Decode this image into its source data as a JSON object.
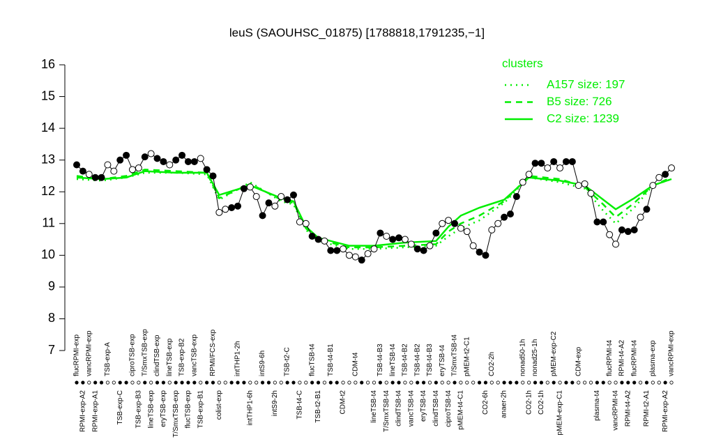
{
  "chart_data": {
    "type": "line",
    "title": "leuS (SAOUHSC_01875) [1788818,1791235,−1]",
    "legend_title": "clusters",
    "legend_position": "top-right",
    "ylim": [
      7,
      16
    ],
    "yticks": [
      7,
      8,
      9,
      10,
      11,
      12,
      13,
      14,
      15,
      16
    ],
    "categories": [
      "flucRPMI-exp",
      "RPMI-exp-A2",
      "vancRPMI-exp",
      "RPMI-exp-A1",
      null,
      "TSB-exp-A",
      null,
      "TSB-exp-C",
      null,
      "ciproTSB-exp",
      "TSB-exp-B3",
      "T/SmxTSB-exp",
      "lineTSB-exp",
      "clindTSB-exp",
      "eryTSB-exp",
      "lineTSB-exp",
      "T/SmxTSB-exp",
      "TSB-exp-B2",
      "flucTSB-exp",
      "vancTSB-exp",
      "TSB-exp-B1",
      null,
      "RPMI/FCS-exp",
      "colist-exp",
      null,
      null,
      "intTHP1-2h",
      null,
      "intTHP1-6h",
      null,
      "intS9-6h",
      null,
      "intS9-2h",
      null,
      "TSB-t2-C",
      null,
      "TSB-t4-C",
      null,
      "flucTSB-t4",
      "TSB-t2-B1",
      null,
      "TSB-t4-B1",
      null,
      "CDM-t2",
      null,
      "CDM-t4",
      null,
      null,
      "lineTSB-t4",
      "TSB-t4-B3",
      "T/SmxTSB-t4",
      "lineTSB-t4",
      "clindTSB-t4",
      "TSB-t4-B2",
      "vancTSB-t4",
      "TSB-t4-B2",
      "eryTSB-t4",
      "TSB-t4-B3",
      "clindTSB-t4",
      "eryTSB-t4",
      "ciproTSB-t4",
      "T/SmxTSB-t4",
      "pMEM-t4-C1",
      "pMEM-t2-C1",
      null,
      null,
      "CO2-6h",
      "CO2-2h",
      null,
      "anaer-2h",
      null,
      null,
      "nonad50-1h",
      "CO2-1h",
      "nonad25-1h",
      "CO2-1h",
      null,
      "pMEM-exp-C2",
      "pMEM-exp-C1",
      null,
      null,
      "CDM-exp",
      null,
      null,
      "plasma-t4",
      null,
      "flucRPMI-t4",
      "vancRPMI-t4",
      "RPMI-t4-A2",
      "RPMI-t4-A2",
      "flucRPMI-t4",
      null,
      "RPMI-t2-A1",
      "plasma-exp",
      null,
      "RPMI-exp-A2",
      "vancRPMI-exp"
    ],
    "marker_filled": [
      true,
      true,
      false,
      true,
      true,
      false,
      false,
      true,
      true,
      false,
      false,
      true,
      false,
      true,
      true,
      false,
      true,
      true,
      true,
      true,
      false,
      true,
      true,
      false,
      false,
      true,
      true,
      true,
      false,
      false,
      true,
      true,
      false,
      false,
      true,
      true,
      false,
      false,
      true,
      true,
      false,
      true,
      true,
      false,
      false,
      false,
      true,
      false,
      false,
      true,
      false,
      true,
      true,
      false,
      false,
      true,
      true,
      false,
      true,
      false,
      false,
      true,
      false,
      false,
      false,
      true,
      true,
      false,
      false,
      true,
      true,
      true,
      false,
      false,
      true,
      true,
      false,
      true,
      false,
      true,
      true,
      false,
      false,
      false,
      true,
      true,
      false,
      false,
      true,
      true,
      true,
      false,
      true,
      false,
      false,
      true,
      false
    ],
    "values": [
      12.85,
      12.65,
      12.55,
      12.45,
      12.45,
      12.85,
      12.65,
      13.0,
      13.15,
      12.7,
      12.75,
      13.1,
      13.2,
      13.05,
      12.95,
      12.85,
      13.0,
      13.15,
      12.95,
      12.95,
      13.05,
      12.7,
      12.5,
      11.35,
      11.45,
      11.5,
      11.55,
      12.1,
      12.15,
      11.85,
      11.25,
      11.65,
      11.55,
      11.85,
      11.75,
      11.9,
      11.05,
      11.0,
      10.6,
      10.5,
      10.45,
      10.15,
      10.15,
      10.2,
      10.0,
      9.95,
      9.85,
      10.05,
      10.2,
      10.7,
      10.6,
      10.5,
      10.55,
      10.5,
      10.35,
      10.2,
      10.15,
      10.3,
      10.7,
      11.0,
      11.1,
      11.0,
      10.85,
      10.75,
      10.3,
      10.1,
      10.0,
      10.8,
      11.0,
      11.2,
      11.3,
      11.85,
      12.3,
      12.55,
      12.9,
      12.9,
      12.75,
      12.95,
      12.75,
      12.95,
      12.95,
      12.2,
      12.25,
      11.95,
      11.05,
      11.05,
      10.65,
      10.35,
      10.8,
      10.75,
      10.8,
      11.2,
      11.45,
      12.2,
      12.45,
      12.55,
      12.75
    ],
    "series": [
      {
        "name": "A157 size: 197",
        "color": "#00ee00",
        "dash": "dotted",
        "x": [
          0,
          4,
          8,
          11,
          16,
          21,
          23,
          28,
          33,
          35,
          37,
          39,
          44,
          48,
          53,
          58,
          60,
          62,
          65,
          69,
          73,
          78,
          82,
          85,
          87,
          90,
          93,
          96
        ],
        "values": [
          12.4,
          12.35,
          12.45,
          12.6,
          12.6,
          12.55,
          11.75,
          12.3,
          11.7,
          11.6,
          10.8,
          10.45,
          10.2,
          10.2,
          10.25,
          10.3,
          10.6,
          10.85,
          11.1,
          11.65,
          12.45,
          12.3,
          12.1,
          11.4,
          11.0,
          11.5,
          12.2,
          12.4
        ]
      },
      {
        "name": "B5 size: 726",
        "color": "#00ee00",
        "dash": "dashed",
        "x": [
          0,
          4,
          8,
          11,
          16,
          21,
          23,
          28,
          33,
          35,
          37,
          39,
          44,
          48,
          53,
          58,
          60,
          62,
          65,
          69,
          73,
          78,
          82,
          85,
          87,
          90,
          93,
          96
        ],
        "values": [
          12.5,
          12.4,
          12.5,
          12.7,
          12.65,
          12.6,
          11.8,
          12.25,
          11.75,
          11.65,
          10.85,
          10.5,
          10.25,
          10.25,
          10.3,
          10.35,
          10.75,
          11.0,
          11.25,
          11.7,
          12.5,
          12.4,
          12.15,
          11.6,
          11.2,
          11.65,
          12.2,
          12.45
        ]
      },
      {
        "name": "C2 size: 1239",
        "color": "#00ee00",
        "dash": "solid",
        "x": [
          0,
          4,
          8,
          11,
          16,
          21,
          23,
          28,
          33,
          35,
          37,
          39,
          44,
          48,
          53,
          58,
          60,
          62,
          65,
          69,
          73,
          78,
          82,
          85,
          87,
          90,
          93,
          96
        ],
        "values": [
          12.45,
          12.4,
          12.45,
          12.65,
          12.6,
          12.6,
          11.9,
          12.2,
          11.8,
          11.7,
          10.9,
          10.55,
          10.3,
          10.3,
          10.4,
          10.45,
          10.9,
          11.25,
          11.5,
          11.75,
          12.45,
          12.35,
          12.2,
          11.75,
          11.45,
          11.8,
          12.2,
          12.4
        ]
      }
    ]
  }
}
